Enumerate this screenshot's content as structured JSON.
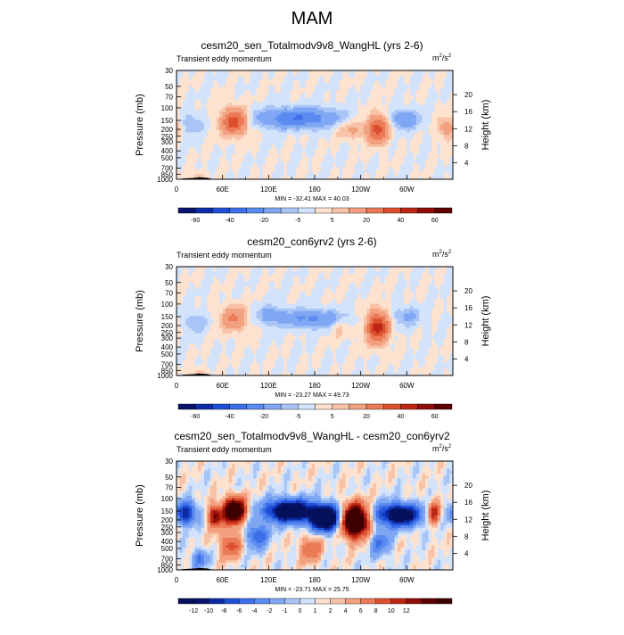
{
  "figure": {
    "title": "MAM"
  },
  "chart_data": [
    {
      "type": "heatmap",
      "title": "cesm20_sen_Totalmodv9v8_WangHL (yrs 2-6)",
      "subtitle": "Transient eddy momentum",
      "units_base": "m",
      "units_exp1": "2",
      "units_mid": "/s",
      "units_exp2": "2",
      "xlabel": "",
      "ylabel": "Pressure (mb)",
      "ylabel_right": "Height (km)",
      "x_ticks": [
        "0",
        "60E",
        "120E",
        "180",
        "120W",
        "60W"
      ],
      "x_tick_lons": [
        0,
        60,
        120,
        180,
        240,
        300
      ],
      "y_ticks": [
        "30",
        "50",
        "70",
        "100",
        "150",
        "200",
        "250",
        "300",
        "400",
        "500",
        "700",
        "850",
        "1000"
      ],
      "y_tick_values": [
        30,
        50,
        70,
        100,
        150,
        200,
        250,
        300,
        400,
        500,
        700,
        850,
        1000
      ],
      "height_ticks": [
        "20",
        "16",
        "12",
        "8",
        "4"
      ],
      "height_values": [
        20,
        16,
        12,
        8,
        4
      ],
      "minmax": "MIN = -32.41  MAX = 40.03",
      "min": -32.41,
      "max": 40.03,
      "colorbar_labels": [
        "-60",
        "-40",
        "-20",
        "-5",
        "5",
        "20",
        "40",
        "60"
      ],
      "contour_levels": [
        -60,
        -50,
        -40,
        -30,
        -20,
        -10,
        -5,
        0,
        5,
        10,
        20,
        30,
        40,
        50,
        60
      ],
      "colors": [
        "#08136b",
        "#0b2ca6",
        "#1f4fd8",
        "#3d6fe8",
        "#5a8bf0",
        "#7fa7f3",
        "#a9c5f7",
        "#d2e3fb",
        "#fde2d0",
        "#f8c2a7",
        "#f2a07f",
        "#eb7a57",
        "#dc4f2f",
        "#bd2614",
        "#8e0d07",
        "#5c0000"
      ],
      "features": [
        {
          "lon": 75,
          "lev": 155,
          "amp": 38,
          "sx": 12,
          "sy": 0.3
        },
        {
          "lon": 158,
          "lev": 140,
          "amp": -30,
          "sx": 38,
          "sy": 0.22
        },
        {
          "lon": 262,
          "lev": 195,
          "amp": 35,
          "sx": 10,
          "sy": 0.32
        },
        {
          "lon": 228,
          "lev": 200,
          "amp": 12,
          "sx": 14,
          "sy": 0.22
        },
        {
          "lon": 297,
          "lev": 145,
          "amp": -18,
          "sx": 14,
          "sy": 0.22
        },
        {
          "lon": 20,
          "lev": 170,
          "amp": -10,
          "sx": 10,
          "sy": 0.25
        },
        {
          "lon": 352,
          "lev": 190,
          "amp": 16,
          "sx": 8,
          "sy": 0.25
        },
        {
          "lon": 30,
          "lev": 920,
          "amp": 10,
          "sx": 6,
          "sy": 0.12
        }
      ]
    },
    {
      "type": "heatmap",
      "title": "cesm20_con6yrv2 (yrs 2-6)",
      "subtitle": "Transient eddy momentum",
      "units_base": "m",
      "units_exp1": "2",
      "units_mid": "/s",
      "units_exp2": "2",
      "xlabel": "",
      "ylabel": "Pressure (mb)",
      "ylabel_right": "Height (km)",
      "x_ticks": [
        "0",
        "60E",
        "120E",
        "180",
        "120W",
        "60W"
      ],
      "x_tick_lons": [
        0,
        60,
        120,
        180,
        240,
        300
      ],
      "y_ticks": [
        "30",
        "50",
        "70",
        "100",
        "150",
        "200",
        "250",
        "300",
        "400",
        "500",
        "700",
        "850",
        "1000"
      ],
      "y_tick_values": [
        30,
        50,
        70,
        100,
        150,
        200,
        250,
        300,
        400,
        500,
        700,
        850,
        1000
      ],
      "height_ticks": [
        "20",
        "16",
        "12",
        "8",
        "4"
      ],
      "height_values": [
        20,
        16,
        12,
        8,
        4
      ],
      "minmax": "MIN = -23.27  MAX = 49.73",
      "min": -23.27,
      "max": 49.73,
      "colorbar_labels": [
        "-60",
        "-40",
        "-20",
        "-5",
        "5",
        "20",
        "40",
        "60"
      ],
      "contour_levels": [
        -60,
        -50,
        -40,
        -30,
        -20,
        -10,
        -5,
        0,
        5,
        10,
        20,
        30,
        40,
        50,
        60
      ],
      "colors": [
        "#08136b",
        "#0b2ca6",
        "#1f4fd8",
        "#3d6fe8",
        "#5a8bf0",
        "#7fa7f3",
        "#a9c5f7",
        "#d2e3fb",
        "#fde2d0",
        "#f8c2a7",
        "#f2a07f",
        "#eb7a57",
        "#dc4f2f",
        "#bd2614",
        "#8e0d07",
        "#5c0000"
      ],
      "features": [
        {
          "lon": 75,
          "lev": 160,
          "amp": 22,
          "sx": 12,
          "sy": 0.28
        },
        {
          "lon": 175,
          "lev": 160,
          "amp": -22,
          "sx": 30,
          "sy": 0.2
        },
        {
          "lon": 122,
          "lev": 140,
          "amp": -14,
          "sx": 12,
          "sy": 0.2
        },
        {
          "lon": 262,
          "lev": 210,
          "amp": 45,
          "sx": 10,
          "sy": 0.35
        },
        {
          "lon": 213,
          "lev": 210,
          "amp": 8,
          "sx": 8,
          "sy": 0.25
        },
        {
          "lon": 300,
          "lev": 150,
          "amp": -12,
          "sx": 14,
          "sy": 0.22
        },
        {
          "lon": 25,
          "lev": 180,
          "amp": -10,
          "sx": 10,
          "sy": 0.25
        },
        {
          "lon": 30,
          "lev": 920,
          "amp": 10,
          "sx": 6,
          "sy": 0.12
        }
      ]
    },
    {
      "type": "heatmap",
      "title": "cesm20_sen_Totalmodv9v8_WangHL - cesm20_con6yrv2",
      "subtitle": "Transient eddy momentum",
      "units_base": "m",
      "units_exp1": "2",
      "units_mid": "/s",
      "units_exp2": "2",
      "xlabel": "",
      "ylabel": "Pressure (mb)",
      "ylabel_right": "Height (km)",
      "x_ticks": [
        "0",
        "60E",
        "120E",
        "180",
        "120W",
        "60W"
      ],
      "x_tick_lons": [
        0,
        60,
        120,
        180,
        240,
        300
      ],
      "y_ticks": [
        "30",
        "50",
        "70",
        "100",
        "150",
        "200",
        "250",
        "300",
        "400",
        "500",
        "700",
        "850",
        "1000"
      ],
      "y_tick_values": [
        30,
        50,
        70,
        100,
        150,
        200,
        250,
        300,
        400,
        500,
        700,
        850,
        1000
      ],
      "height_ticks": [
        "20",
        "16",
        "12",
        "8",
        "4"
      ],
      "height_values": [
        20,
        16,
        12,
        8,
        4
      ],
      "minmax": "MIN = -23.71  MAX = 25.75",
      "min": -23.71,
      "max": 25.75,
      "colorbar_labels": [
        "-12",
        "-10",
        "-8",
        "-6",
        "-4",
        "-2",
        "-1",
        "0",
        "1",
        "2",
        "4",
        "6",
        "8",
        "10",
        "12"
      ],
      "contour_levels": [
        -14,
        -12,
        -10,
        -8,
        -6,
        -4,
        -2,
        -1,
        0,
        1,
        2,
        4,
        6,
        8,
        10,
        12,
        14
      ],
      "colors": [
        "#05105a",
        "#08136b",
        "#0b2ca6",
        "#1f4fd8",
        "#3d6fe8",
        "#5a8bf0",
        "#7fa7f3",
        "#a9c5f7",
        "#d2e3fb",
        "#fde2d0",
        "#f8c2a7",
        "#f2a07f",
        "#eb7a57",
        "#dc4f2f",
        "#bd2614",
        "#8e0d07",
        "#5c0000",
        "#3d0000"
      ],
      "features": [
        {
          "lon": 75,
          "lev": 150,
          "amp": 22,
          "sx": 10,
          "sy": 0.28
        },
        {
          "lon": 50,
          "lev": 180,
          "amp": 12,
          "sx": 6,
          "sy": 0.25
        },
        {
          "lon": 12,
          "lev": 160,
          "amp": -12,
          "sx": 10,
          "sy": 0.25
        },
        {
          "lon": 148,
          "lev": 150,
          "amp": -20,
          "sx": 22,
          "sy": 0.25
        },
        {
          "lon": 195,
          "lev": 190,
          "amp": -22,
          "sx": 14,
          "sy": 0.28
        },
        {
          "lon": 232,
          "lev": 205,
          "amp": 26,
          "sx": 12,
          "sy": 0.35
        },
        {
          "lon": 290,
          "lev": 170,
          "amp": -18,
          "sx": 20,
          "sy": 0.25
        },
        {
          "lon": 335,
          "lev": 160,
          "amp": 10,
          "sx": 6,
          "sy": 0.25
        },
        {
          "lon": 105,
          "lev": 330,
          "amp": -8,
          "sx": 10,
          "sy": 0.3
        },
        {
          "lon": 70,
          "lev": 450,
          "amp": 7,
          "sx": 10,
          "sy": 0.3
        },
        {
          "lon": 175,
          "lev": 500,
          "amp": 6,
          "sx": 10,
          "sy": 0.3
        },
        {
          "lon": 265,
          "lev": 420,
          "amp": -6,
          "sx": 10,
          "sy": 0.3
        },
        {
          "lon": 30,
          "lev": 700,
          "amp": -6,
          "sx": 8,
          "sy": 0.2
        }
      ]
    }
  ]
}
